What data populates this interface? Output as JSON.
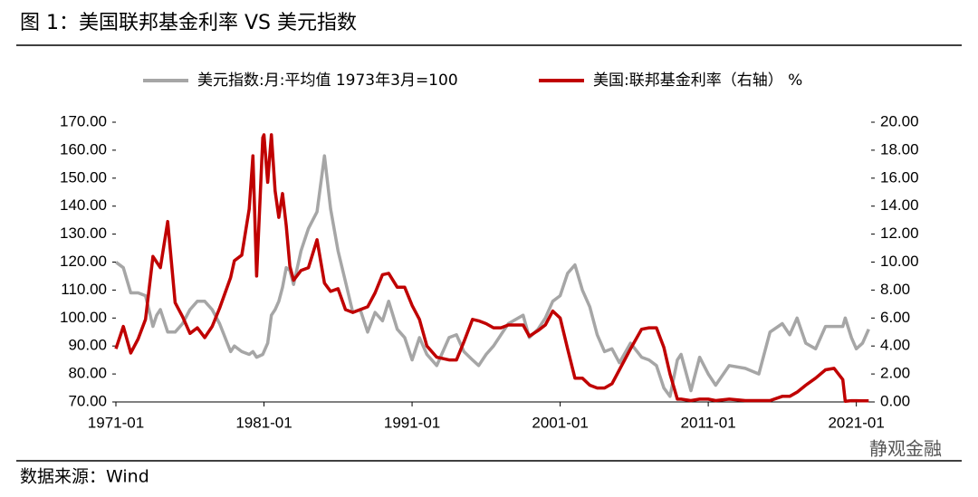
{
  "chart_data": {
    "type": "line",
    "title": "图 1：美国联邦基金利率 VS 美元指数",
    "source": "数据来源：Wind",
    "watermark": "静观金融",
    "x": [
      "1971-01",
      "1971-07",
      "1972-01",
      "1972-07",
      "1973-01",
      "1973-07",
      "1973-10",
      "1974-01",
      "1974-07",
      "1975-01",
      "1975-07",
      "1976-01",
      "1976-07",
      "1977-01",
      "1977-07",
      "1978-01",
      "1978-10",
      "1979-01",
      "1979-07",
      "1980-01",
      "1980-04",
      "1980-07",
      "1980-12",
      "1981-01",
      "1981-04",
      "1981-07",
      "1981-10",
      "1982-01",
      "1982-04",
      "1982-07",
      "1982-10",
      "1983-01",
      "1983-07",
      "1984-01",
      "1984-08",
      "1985-02",
      "1985-07",
      "1986-01",
      "1986-07",
      "1987-01",
      "1987-07",
      "1988-01",
      "1988-07",
      "1989-01",
      "1989-06",
      "1990-01",
      "1990-07",
      "1991-01",
      "1991-07",
      "1992-01",
      "1992-09",
      "1993-07",
      "1994-01",
      "1994-07",
      "1995-02",
      "1995-07",
      "1996-01",
      "1996-07",
      "1997-01",
      "1997-07",
      "1998-07",
      "1998-12",
      "1999-07",
      "2000-01",
      "2000-07",
      "2001-01",
      "2001-07",
      "2002-01",
      "2002-07",
      "2003-01",
      "2003-07",
      "2004-01",
      "2004-07",
      "2005-01",
      "2005-10",
      "2006-07",
      "2007-01",
      "2007-07",
      "2008-01",
      "2008-06",
      "2008-12",
      "2009-03",
      "2009-11",
      "2010-06",
      "2011-01",
      "2011-07",
      "2012-06",
      "2013-07",
      "2014-06",
      "2015-03",
      "2016-01",
      "2016-07",
      "2017-01",
      "2017-08",
      "2018-04",
      "2018-12",
      "2019-07",
      "2020-02",
      "2020-04",
      "2020-09",
      "2021-01",
      "2021-06",
      "2021-11"
    ],
    "series": [
      {
        "name": "美元指数:月:平均值 1973年3月=100",
        "color": "#a6a6a6",
        "axis": "y",
        "values": [
          120,
          118,
          109,
          109,
          108,
          97,
          101,
          103,
          95,
          95,
          98,
          103,
          106,
          106,
          103,
          98,
          88,
          90,
          88,
          87,
          88,
          86,
          87,
          88,
          91,
          101,
          103,
          106,
          111,
          118,
          117,
          112,
          124,
          132,
          138,
          158,
          139,
          124,
          113,
          102,
          103,
          95,
          102,
          99,
          106,
          96,
          93,
          85,
          93,
          87,
          83,
          93,
          94,
          88,
          85,
          83,
          87,
          90,
          94,
          98,
          101,
          93,
          96,
          100,
          106,
          108,
          116,
          119,
          110,
          104,
          94,
          88,
          89,
          84,
          91,
          86,
          85,
          83,
          75,
          72,
          85,
          87,
          74,
          86,
          80,
          76,
          83,
          82,
          80,
          95,
          98,
          94,
          100,
          91,
          89,
          97,
          97,
          97,
          100,
          93,
          89,
          91,
          96
        ]
      },
      {
        "name": "美国:联邦基金利率（右轴） %",
        "color": "#c00000",
        "axis": "y2",
        "values": [
          3.8,
          5.4,
          3.5,
          4.5,
          5.9,
          10.4,
          10.0,
          9.6,
          12.9,
          7.1,
          6.1,
          4.9,
          5.3,
          4.6,
          5.4,
          6.7,
          8.9,
          10.1,
          10.5,
          13.8,
          17.6,
          9.0,
          18.9,
          19.1,
          15.7,
          19.1,
          15.1,
          13.2,
          14.9,
          12.6,
          9.7,
          8.7,
          9.4,
          9.6,
          11.6,
          8.5,
          7.9,
          8.1,
          6.6,
          6.4,
          6.6,
          6.8,
          7.8,
          9.1,
          9.2,
          8.2,
          8.2,
          6.9,
          5.9,
          4.0,
          3.2,
          3.0,
          3.0,
          4.3,
          5.9,
          5.8,
          5.6,
          5.3,
          5.3,
          5.5,
          5.5,
          4.7,
          5.1,
          5.5,
          6.5,
          6.0,
          3.8,
          1.7,
          1.7,
          1.2,
          1.0,
          1.0,
          1.3,
          2.3,
          3.8,
          5.2,
          5.3,
          5.3,
          3.9,
          2.0,
          0.2,
          0.2,
          0.1,
          0.2,
          0.2,
          0.1,
          0.2,
          0.1,
          0.1,
          0.1,
          0.4,
          0.4,
          0.7,
          1.2,
          1.7,
          2.3,
          2.4,
          1.6,
          0.05,
          0.09,
          0.09,
          0.08,
          0.08
        ]
      }
    ],
    "xlim": [
      "1971-01",
      "2022-01"
    ],
    "xticks": [
      "1971-01",
      "1981-01",
      "1991-01",
      "2001-01",
      "2011-01",
      "2021-01"
    ],
    "ylim": [
      70,
      170
    ],
    "yticks": [
      {
        "value": 70,
        "label": "70.00"
      },
      {
        "value": 80,
        "label": "80.00"
      },
      {
        "value": 90,
        "label": "90.00"
      },
      {
        "value": 100,
        "label": "100.00"
      },
      {
        "value": 110,
        "label": "110.00"
      },
      {
        "value": 120,
        "label": "120.00"
      },
      {
        "value": 130,
        "label": "130.00"
      },
      {
        "value": 140,
        "label": "140.00"
      },
      {
        "value": 150,
        "label": "150.00"
      },
      {
        "value": 160,
        "label": "160.00"
      },
      {
        "value": 170,
        "label": "170.00"
      }
    ],
    "y2lim": [
      0,
      20
    ],
    "y2ticks": [
      {
        "value": 0,
        "label": "0.00"
      },
      {
        "value": 2,
        "label": "2.00"
      },
      {
        "value": 4,
        "label": "4.00"
      },
      {
        "value": 6,
        "label": "6.00"
      },
      {
        "value": 8,
        "label": "8.00"
      },
      {
        "value": 10,
        "label": "10.00"
      },
      {
        "value": 12,
        "label": "12.00"
      },
      {
        "value": 14,
        "label": "14.00"
      },
      {
        "value": 16,
        "label": "16.00"
      },
      {
        "value": 18,
        "label": "18.00"
      },
      {
        "value": 20,
        "label": "20.00"
      }
    ],
    "legend": "top"
  }
}
